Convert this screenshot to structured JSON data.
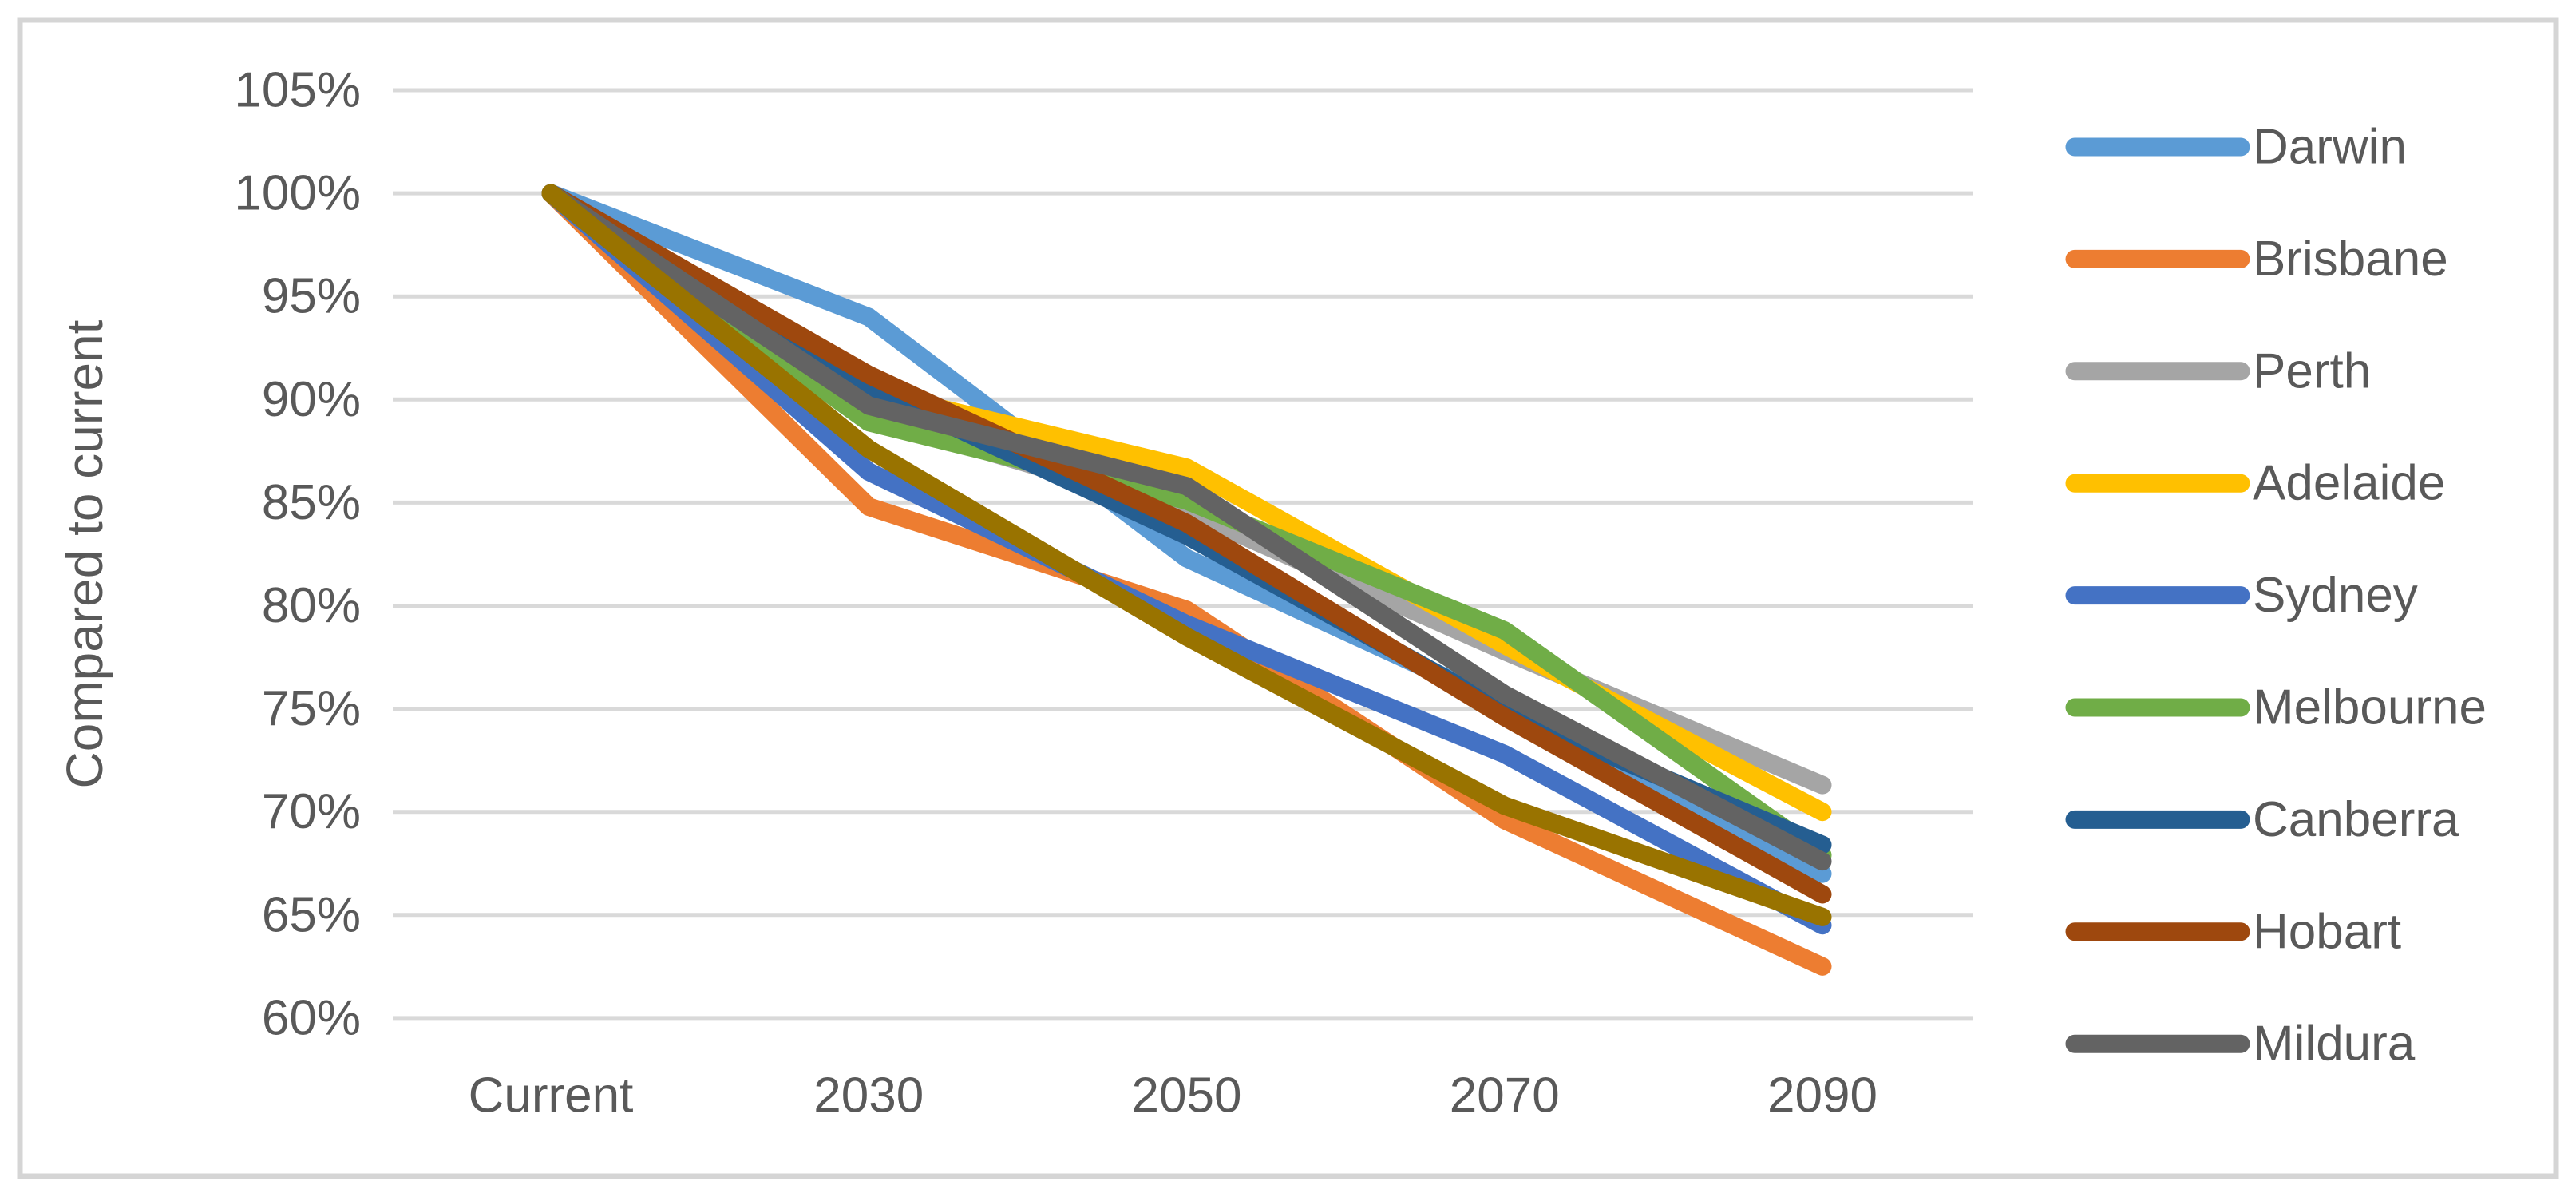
{
  "chart_data": {
    "type": "line",
    "title": "",
    "xlabel": "",
    "ylabel": "Compared to current",
    "categories": [
      "Current",
      "2030",
      "2050",
      "2070",
      "2090"
    ],
    "y_axis": {
      "unit": "percent",
      "min_pct": 60,
      "max_pct": 105,
      "step_pct": 5,
      "tick_labels": [
        "105%",
        "100%",
        "95%",
        "90%",
        "85%",
        "80%",
        "75%",
        "70%",
        "65%",
        "60%"
      ]
    },
    "grid": "horizontal",
    "legend_position": "right",
    "series": [
      {
        "name": "Darwin",
        "color": "#5B9BD5",
        "in_legend": true,
        "values_pct": [
          100,
          94.0,
          82.3,
          75.2,
          67.0
        ]
      },
      {
        "name": "Brisbane",
        "color": "#ED7D31",
        "in_legend": true,
        "values_pct": [
          100,
          84.8,
          79.8,
          69.6,
          62.5
        ]
      },
      {
        "name": "Perth",
        "color": "#A5A5A5",
        "in_legend": true,
        "values_pct": [
          100,
          89.2,
          84.6,
          77.8,
          71.3
        ]
      },
      {
        "name": "Adelaide",
        "color": "#FFC000",
        "in_legend": true,
        "values_pct": [
          100,
          90.4,
          86.7,
          78.1,
          70.0
        ]
      },
      {
        "name": "Sydney",
        "color": "#4472C4",
        "in_legend": true,
        "values_pct": [
          100,
          86.5,
          79.1,
          72.8,
          64.5
        ]
      },
      {
        "name": "Melbourne",
        "color": "#70AD47",
        "in_legend": true,
        "values_pct": [
          100,
          88.9,
          85.1,
          78.8,
          67.9
        ]
      },
      {
        "name": "Canberra",
        "color": "#255E91",
        "in_legend": true,
        "values_pct": [
          100,
          90.6,
          83.4,
          74.9,
          68.4
        ]
      },
      {
        "name": "Hobart",
        "color": "#9E480E",
        "in_legend": true,
        "values_pct": [
          100,
          91.2,
          84.0,
          74.6,
          66.0
        ]
      },
      {
        "name": "Mildura",
        "color": "#636363",
        "in_legend": true,
        "values_pct": [
          100,
          89.7,
          85.8,
          75.7,
          67.6
        ]
      },
      {
        "name": "",
        "color": "#997300",
        "in_legend": false,
        "values_pct": [
          100,
          87.6,
          78.5,
          70.3,
          64.9
        ]
      }
    ],
    "styles": {
      "text_color": "#595959",
      "gridline_color": "#D9D9D9",
      "frame_border_color": "#D5D5D5",
      "background_color": "#FFFFFF"
    }
  }
}
